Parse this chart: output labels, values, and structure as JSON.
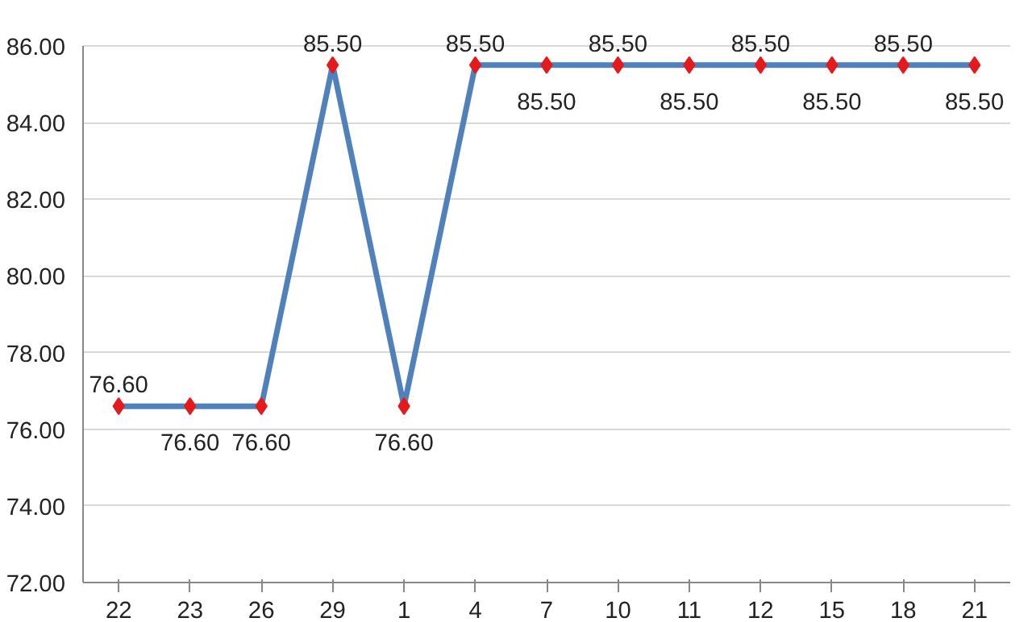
{
  "chart_data": {
    "type": "line",
    "categories": [
      "22",
      "23",
      "26",
      "29",
      "1",
      "4",
      "7",
      "10",
      "11",
      "12",
      "15",
      "18",
      "21"
    ],
    "series": [
      {
        "color": "#4f81bd",
        "values": [
          76.6,
          76.6,
          76.6,
          85.5,
          76.6,
          85.5,
          85.5,
          85.5,
          85.5,
          85.5,
          85.5,
          85.5,
          85.5
        ],
        "value_labels": [
          "76.60",
          "76.60",
          "76.60",
          "85.50",
          "76.60",
          "85.50",
          "85.50",
          "85.50",
          "85.50",
          "85.50",
          "85.50",
          "85.50",
          "85.50"
        ]
      }
    ],
    "ylim": [
      72,
      86
    ],
    "yticks": [
      {
        "value": 72,
        "label": "72.00"
      },
      {
        "value": 74,
        "label": "74.00"
      },
      {
        "value": 76,
        "label": "76.00"
      },
      {
        "value": 78,
        "label": "78.00"
      },
      {
        "value": 80,
        "label": "80.00"
      },
      {
        "value": 82,
        "label": "82.00"
      },
      {
        "value": 84,
        "label": "84.00"
      },
      {
        "value": 86,
        "label": "86.00"
      }
    ],
    "grid": "y",
    "marker": "diamond",
    "line_style": "solid"
  }
}
